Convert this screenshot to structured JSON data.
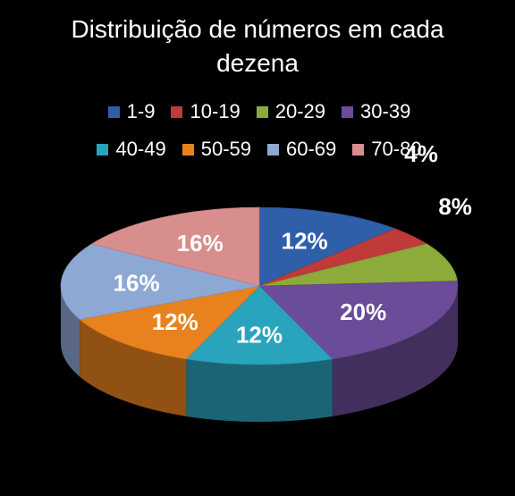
{
  "chart_data": {
    "type": "pie",
    "title_lines": [
      "Distribuição de números em cada",
      "dezena"
    ],
    "legend_placement": "top",
    "slices": [
      {
        "name": "1-9",
        "value": 12,
        "label": "12%",
        "color": "#2e5fa8"
      },
      {
        "name": "10-19",
        "value": 4,
        "label": "4%",
        "color": "#c0393b"
      },
      {
        "name": "20-29",
        "value": 8,
        "label": "8%",
        "color": "#8dab3a"
      },
      {
        "name": "30-39",
        "value": 20,
        "label": "20%",
        "color": "#6a4c98"
      },
      {
        "name": "40-49",
        "value": 12,
        "label": "12%",
        "color": "#2aa3bd"
      },
      {
        "name": "50-59",
        "value": 12,
        "label": "12%",
        "color": "#e8821f"
      },
      {
        "name": "60-69",
        "value": 16,
        "label": "16%",
        "color": "#8ea8d4"
      },
      {
        "name": "70-80",
        "value": 16,
        "label": "16%",
        "color": "#d78e8c"
      }
    ]
  }
}
